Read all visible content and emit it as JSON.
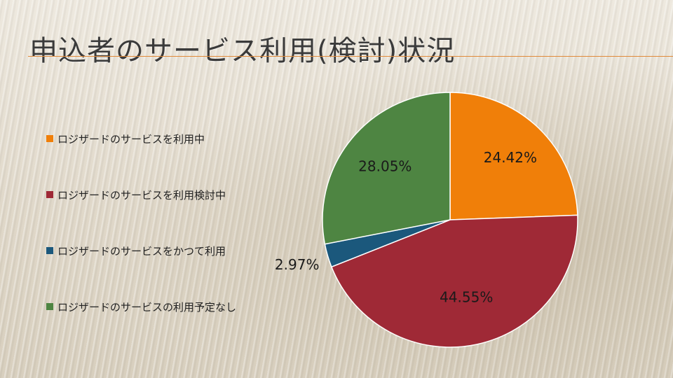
{
  "title": "申込者のサービス利用(検討)状況",
  "chart_data": {
    "type": "pie",
    "title": "",
    "categories": [
      "ロジザードのサービスを利用中",
      "ロジザードのサービスを利用検討中",
      "ロジザードのサービスをかつて利用",
      "ロジザードのサービスの利用予定なし"
    ],
    "values": [
      24.42,
      44.55,
      2.97,
      28.05
    ],
    "data_labels": [
      "24.42%",
      "44.55%",
      "2.97%",
      "28.05%"
    ],
    "colors": [
      "#f07f09",
      "#9f2936",
      "#1b587c",
      "#4e8542"
    ],
    "legend_position": "left"
  }
}
